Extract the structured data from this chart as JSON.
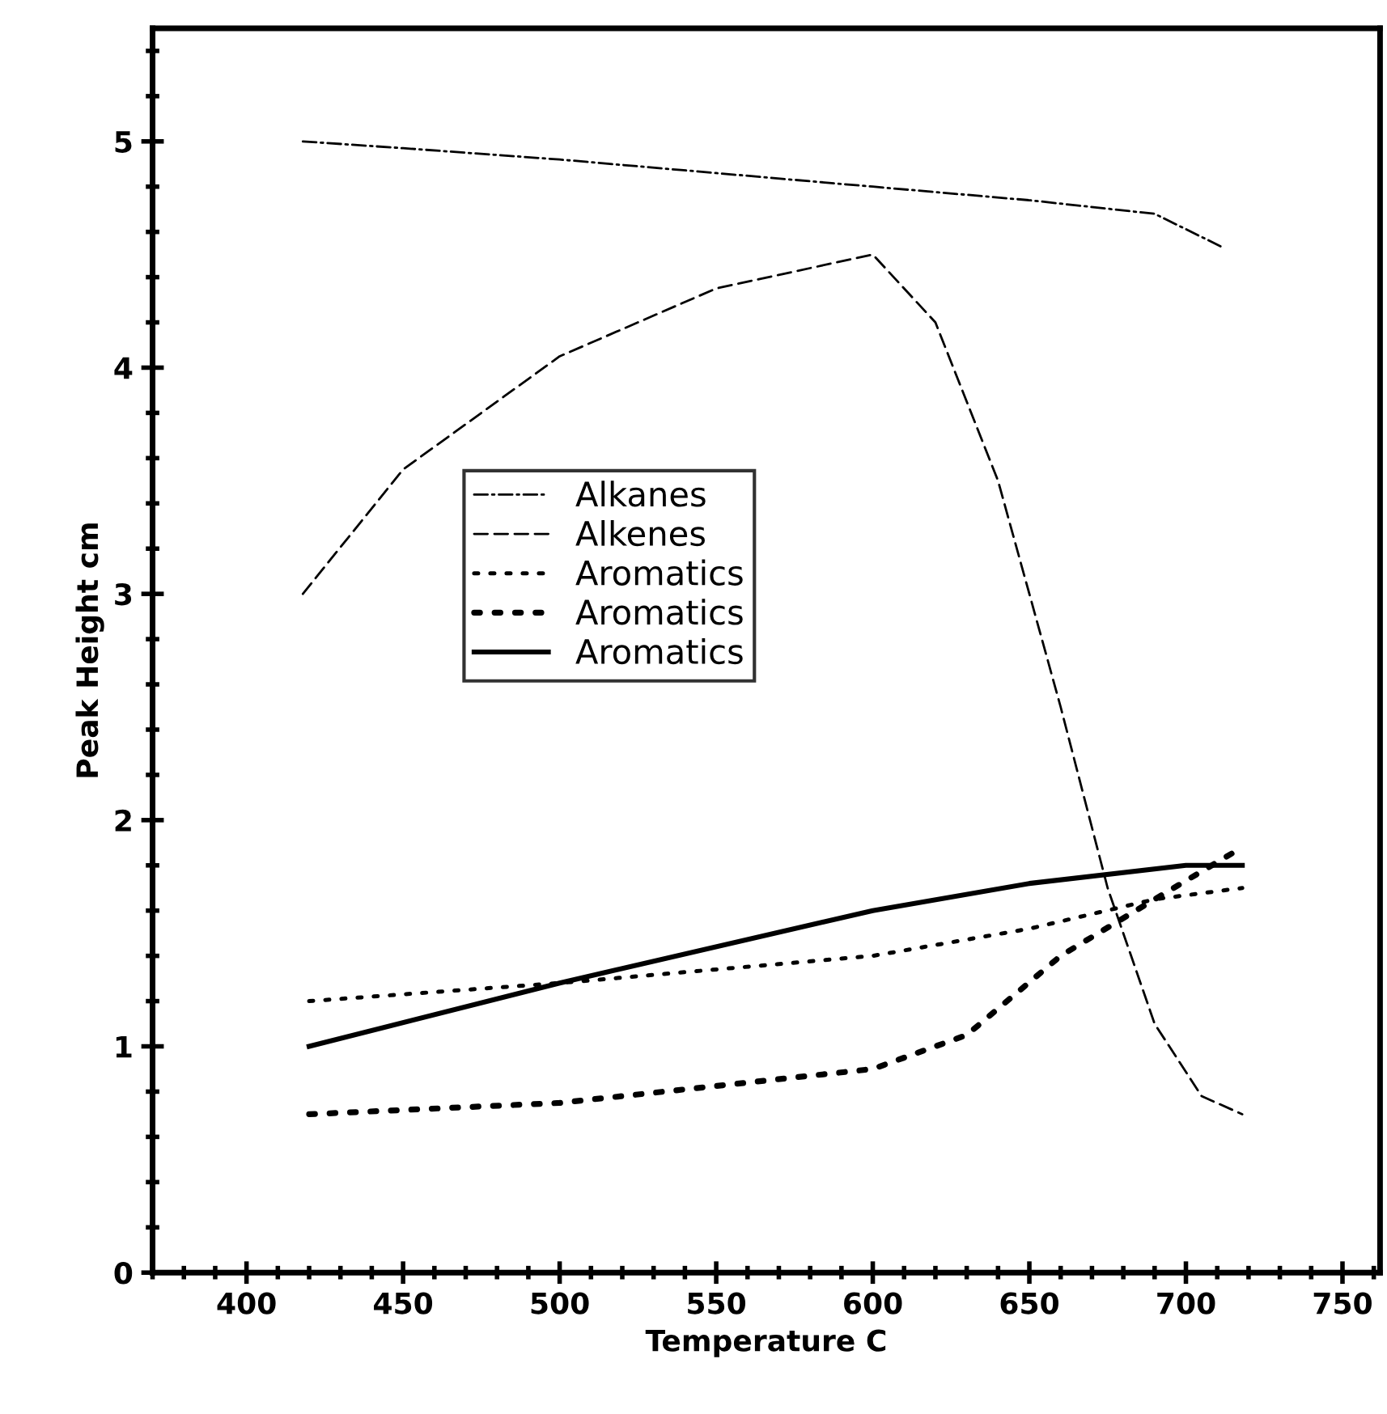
{
  "chart_data": {
    "type": "line",
    "xlabel": "Temperature C",
    "ylabel": "Peak Height cm",
    "xlim": [
      370,
      762
    ],
    "ylim": [
      0,
      5.5
    ],
    "xticks": [
      400,
      450,
      500,
      550,
      600,
      650,
      700,
      750
    ],
    "yticks": [
      0,
      1,
      2,
      3,
      4,
      5
    ],
    "grid": false,
    "legend": "center left",
    "series": [
      {
        "name": "Alkanes",
        "color": "#000000",
        "line_style": "dashdot",
        "x": [
          418,
          450,
          500,
          550,
          600,
          650,
          690,
          712
        ],
        "values": [
          5.0,
          4.97,
          4.92,
          4.86,
          4.8,
          4.74,
          4.68,
          4.53
        ]
      },
      {
        "name": "Alkenes",
        "color": "#000000",
        "line_style": "dashed",
        "x": [
          418,
          450,
          500,
          550,
          600,
          620,
          640,
          660,
          675,
          690,
          705,
          718
        ],
        "values": [
          3.0,
          3.55,
          4.05,
          4.35,
          4.5,
          4.2,
          3.5,
          2.5,
          1.7,
          1.1,
          0.78,
          0.7
        ]
      },
      {
        "name": "Aromatics",
        "color": "#000000",
        "line_style": "dotted",
        "x": [
          420,
          500,
          600,
          650,
          690,
          718
        ],
        "values": [
          1.2,
          1.28,
          1.4,
          1.52,
          1.65,
          1.7
        ]
      },
      {
        "name": "Aromatics",
        "color": "#000000",
        "line_style": "loosely dotted",
        "x": [
          420,
          500,
          600,
          630,
          660,
          690,
          718
        ],
        "values": [
          0.7,
          0.75,
          0.9,
          1.05,
          1.4,
          1.65,
          1.88
        ]
      },
      {
        "name": "Aromatics",
        "color": "#000000",
        "line_style": "solid",
        "x": [
          420,
          500,
          600,
          650,
          700,
          718
        ],
        "values": [
          1.0,
          1.28,
          1.6,
          1.72,
          1.8,
          1.8
        ]
      }
    ]
  }
}
